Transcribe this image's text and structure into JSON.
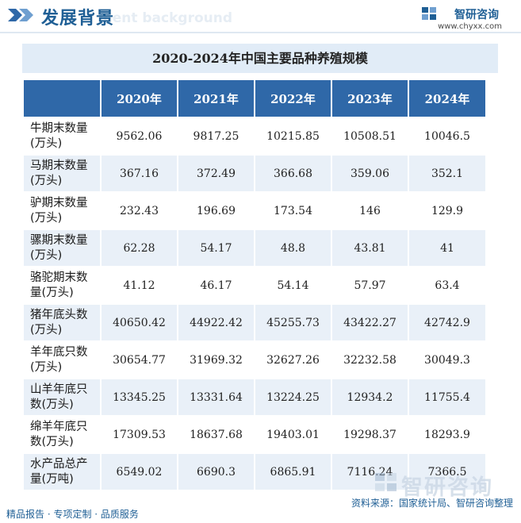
{
  "header": {
    "title": "发展背景",
    "ghost_text": "ment background"
  },
  "brand": {
    "name": "智研咨询",
    "url": "www.chyxx.com",
    "logo_icon": "zhiyan-logo-icon",
    "accent_color": "#1f5f95"
  },
  "table": {
    "title": "2020-2024年中国主要品种养殖规模",
    "columns": [
      "2020年",
      "2021年",
      "2022年",
      "2023年",
      "2024年"
    ],
    "rows": [
      {
        "label": "牛期末数量\n(万头)",
        "values": [
          "9562.06",
          "9817.25",
          "10215.85",
          "10508.51",
          "10046.5"
        ]
      },
      {
        "label": "马期末数量\n(万头)",
        "values": [
          "367.16",
          "372.49",
          "366.68",
          "359.06",
          "352.1"
        ]
      },
      {
        "label": "驴期末数量\n(万头)",
        "values": [
          "232.43",
          "196.69",
          "173.54",
          "146",
          "129.9"
        ]
      },
      {
        "label": "骡期末数量\n(万头)",
        "values": [
          "62.28",
          "54.17",
          "48.8",
          "43.81",
          "41"
        ]
      },
      {
        "label": "骆驼期末数\n量(万头)",
        "values": [
          "41.12",
          "46.17",
          "54.14",
          "57.97",
          "63.4"
        ]
      },
      {
        "label": "猪年底头数\n(万头)",
        "values": [
          "40650.42",
          "44922.42",
          "45255.73",
          "43422.27",
          "42742.9"
        ]
      },
      {
        "label": "羊年底只数\n(万头)",
        "values": [
          "30654.77",
          "31969.32",
          "32627.26",
          "32232.58",
          "30049.3"
        ]
      },
      {
        "label": "山羊年底只\n数(万头)",
        "values": [
          "13345.25",
          "13331.64",
          "13224.25",
          "12934.2",
          "11755.4"
        ]
      },
      {
        "label": "绵羊年底只\n数(万头)",
        "values": [
          "17309.53",
          "18637.68",
          "19403.01",
          "19298.37",
          "18293.9"
        ]
      },
      {
        "label": "水产品总产\n量(万吨)",
        "values": [
          "6549.02",
          "6690.3",
          "6865.91",
          "7116.24",
          "7366.5"
        ]
      }
    ]
  },
  "footer": {
    "left": "精品报告 · 专项定制 · 品质服务",
    "source": "资料来源：国家统计局、智研咨询整理"
  },
  "watermark": {
    "text": "智研咨询"
  }
}
